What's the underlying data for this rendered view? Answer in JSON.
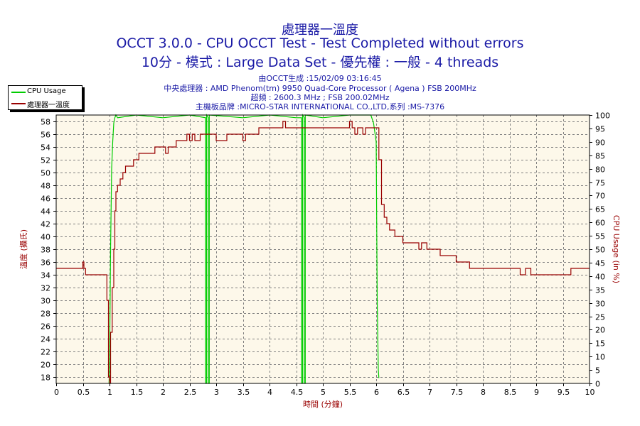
{
  "header": {
    "title": "處理器一溫度",
    "subtitle1": "OCCT 3.0.0 - CPU OCCT Test - Test Completed without errors",
    "subtitle2": "10分 - 模式 : Large Data Set - 優先權 : 一般 - 4 threads",
    "info": [
      "由OCCT生成 :15/02/09 03:16:45",
      "中央處理器 : AMD Phenom(tm) 9950 Quad-Core Processor ( Agena ) FSB 200MHz",
      "超頻 : 2600.3 MHz ; FSB 200.02MHz",
      "主機板品牌 :MICRO-STAR INTERNATIONAL CO.,LTD,系列 :MS-7376"
    ]
  },
  "colors": {
    "plot_bg": "#fdf8ea",
    "grid": "#808080",
    "temp": "#990000",
    "cpu": "#00cc00",
    "text": "#1a1aa6"
  },
  "chart_data": {
    "type": "line",
    "xlabel": "時間 (分鐘)",
    "ylabel_left": "溫度 (攝氏)",
    "ylabel_right": "CPU Usage (in %)",
    "xlim": [
      0,
      10
    ],
    "ylim_left": [
      17,
      59
    ],
    "ylim_right": [
      0,
      100
    ],
    "x_ticks": [
      "0",
      "0.5",
      "1",
      "1.5",
      "2",
      "2.5",
      "3",
      "3.5",
      "4",
      "4.5",
      "5",
      "5.5",
      "6",
      "6.5",
      "7",
      "7.5",
      "8",
      "8.5",
      "9",
      "9.5",
      "10"
    ],
    "y_left_ticks": [
      "18",
      "20",
      "22",
      "24",
      "26",
      "28",
      "30",
      "32",
      "34",
      "36",
      "38",
      "40",
      "42",
      "44",
      "46",
      "48",
      "50",
      "52",
      "54",
      "56",
      "58"
    ],
    "y_right_ticks": [
      "0",
      "5",
      "10",
      "15",
      "20",
      "25",
      "30",
      "35",
      "40",
      "45",
      "50",
      "55",
      "60",
      "65",
      "70",
      "75",
      "80",
      "85",
      "90",
      "95",
      "100"
    ],
    "grid": true,
    "legend_position": "top-left",
    "series": [
      {
        "name": "CPU Usage",
        "axis": "right",
        "x": [
          0.99,
          1.0,
          1.02,
          1.04,
          1.06,
          1.08,
          1.1,
          1.12,
          1.15,
          1.5,
          2.0,
          2.5,
          2.8,
          2.8,
          2.81,
          2.82,
          2.82,
          2.85,
          2.85,
          2.86,
          2.87,
          2.87,
          3.5,
          4.0,
          4.5,
          4.6,
          4.6,
          4.61,
          4.62,
          4.62,
          4.65,
          4.65,
          4.66,
          4.67,
          4.67,
          5.0,
          5.5,
          5.9,
          5.95,
          6.0,
          6.02,
          6.04,
          6.05
        ],
        "y": [
          0,
          5,
          50,
          80,
          90,
          97,
          99,
          100,
          99,
          100,
          99,
          100,
          99,
          0,
          0,
          0,
          100,
          99,
          0,
          0,
          0,
          100,
          99,
          100,
          99,
          99,
          0,
          0,
          0,
          100,
          99,
          0,
          0,
          0,
          100,
          99,
          100,
          100,
          97,
          90,
          30,
          5,
          2
        ]
      },
      {
        "name": "處理器一溫度",
        "axis": "left",
        "x": [
          0,
          0.48,
          0.5,
          0.52,
          0.55,
          0.9,
          0.95,
          0.98,
          1.0,
          1.02,
          1.05,
          1.08,
          1.1,
          1.12,
          1.15,
          1.2,
          1.25,
          1.3,
          1.35,
          1.45,
          1.55,
          1.65,
          1.75,
          1.85,
          2.0,
          2.05,
          2.1,
          2.15,
          2.25,
          2.35,
          2.45,
          2.5,
          2.55,
          2.6,
          2.7,
          2.8,
          2.9,
          3.0,
          3.2,
          3.3,
          3.45,
          3.5,
          3.55,
          3.65,
          3.8,
          3.9,
          4.0,
          4.15,
          4.25,
          4.3,
          4.5,
          5.0,
          5.45,
          5.5,
          5.55,
          5.6,
          5.65,
          5.7,
          5.75,
          5.8,
          5.85,
          5.9,
          5.95,
          6.0,
          6.05,
          6.1,
          6.15,
          6.2,
          6.25,
          6.35,
          6.5,
          6.7,
          6.8,
          6.85,
          6.95,
          7.05,
          7.2,
          7.5,
          7.6,
          7.75,
          8.0,
          8.5,
          8.7,
          8.8,
          8.9,
          9.5,
          9.65,
          10.0
        ],
        "y": [
          35,
          35,
          36,
          35,
          34,
          34,
          30,
          18,
          17,
          25,
          32,
          38,
          44,
          47,
          48,
          49,
          50,
          51,
          51,
          52,
          53,
          53,
          53,
          54,
          54,
          53,
          54,
          54,
          55,
          55,
          56,
          55,
          56,
          55,
          56,
          56,
          56,
          55,
          56,
          56,
          56,
          55,
          56,
          56,
          57,
          57,
          57,
          57,
          58,
          57,
          57,
          57,
          57,
          58,
          57,
          56,
          57,
          57,
          56,
          57,
          57,
          57,
          57,
          57,
          52,
          45,
          43,
          42,
          41,
          40,
          39,
          39,
          38,
          39,
          38,
          38,
          37,
          36,
          36,
          35,
          35,
          35,
          34,
          35,
          34,
          34,
          35,
          35
        ]
      }
    ]
  }
}
